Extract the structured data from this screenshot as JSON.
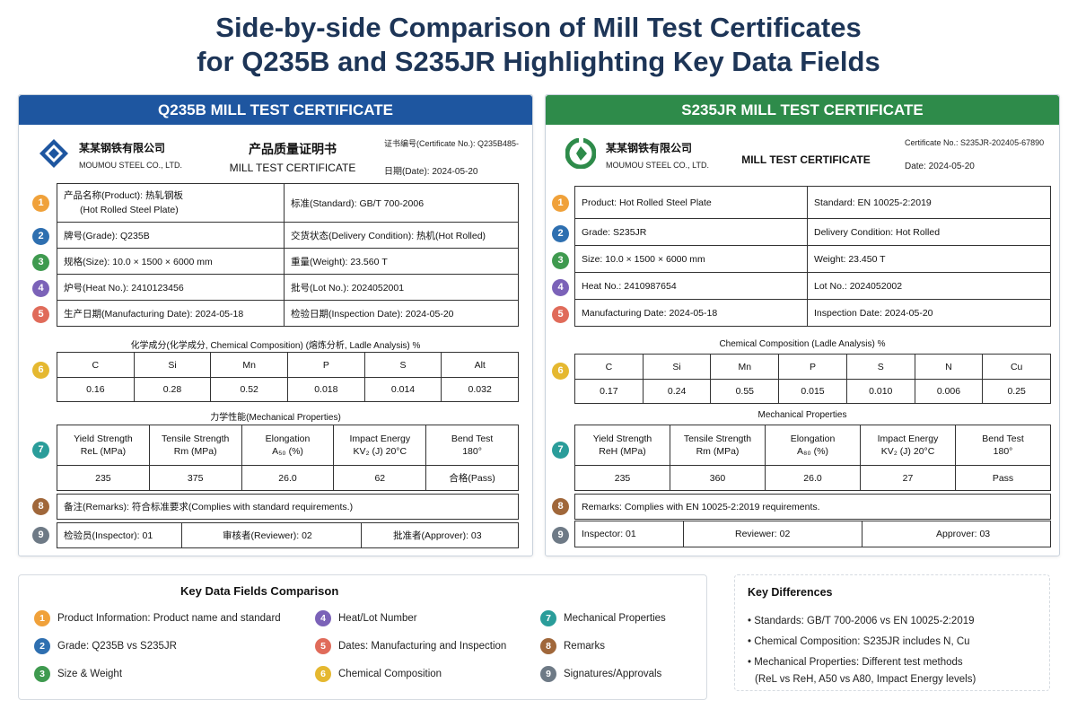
{
  "page": {
    "title_line1": "Side-by-side Comparison of Mill Test Certificates",
    "title_line2": "for Q235B and S235JR Highlighting Key Data Fields"
  },
  "colors": {
    "q235b_header": "#1e56a0",
    "s235jr_header": "#2e8b4a",
    "badges": [
      "#f0a13a",
      "#2e6fb0",
      "#3f9a4f",
      "#7b62b8",
      "#e06b5a",
      "#e5b830",
      "#2a9d9a",
      "#a0673a",
      "#6e7a86"
    ]
  },
  "q235b": {
    "header": "Q235B MILL TEST CERTIFICATE",
    "logo_icon": "diamond-logo-icon",
    "company_cn": "某某钢铁有限公司",
    "company_en": "MOUMOU STEEL CO., LTD.",
    "doc_title_cn": "产品质量证明书",
    "doc_title_en": "MILL TEST CERTIFICATE",
    "cert_no": "证书编号(Certificate No.): Q235B485-",
    "date": "日期(Date): 2024-05-20",
    "product_label": "产品名称(Product): 热轧钢板",
    "product_value": "(Hot Rolled Steel Plate)",
    "standard": "标准(Standard): GB/T 700-2006",
    "grade": "牌号(Grade): Q235B",
    "delivery": "交货状态(Delivery Condition): 热机(Hot Rolled)",
    "size": "规格(Size): 10.0 × 1500 × 6000 mm",
    "weight": "重量(Weight): 23.560 T",
    "heat": "炉号(Heat No.): 2410123456",
    "lot": "批号(Lot No.): 2024052001",
    "mfg_date": "生产日期(Manufacturing Date): 2024-05-18",
    "insp_date": "检验日期(Inspection Date): 2024-05-20",
    "chem_title": "化学成分(化学成分, Chemical Composition) (熔炼分析, Ladle Analysis) %",
    "chem_headers": [
      "C",
      "Si",
      "Mn",
      "P",
      "S",
      "Alt"
    ],
    "chem_values": [
      "0.16",
      "0.28",
      "0.52",
      "0.018",
      "0.014",
      "0.032"
    ],
    "mech_title": "力学性能(Mechanical Properties)",
    "mech_headers": [
      [
        "Yield Strength",
        "ReL (MPa)"
      ],
      [
        "Tensile Strength",
        "Rm (MPa)"
      ],
      [
        "Elongation",
        "A₅₀ (%)"
      ],
      [
        "Impact Energy",
        "KV₂ (J) 20°C"
      ],
      [
        "Bend Test",
        "180°"
      ]
    ],
    "mech_values": [
      "235",
      "375",
      "26.0",
      "62",
      "合格(Pass)"
    ],
    "remarks": "备注(Remarks): 符合标准要求(Complies with standard requirements.)",
    "inspector": "检验员(Inspector): 01",
    "reviewer": "审核者(Reviewer): 02",
    "approver": "批准者(Approver): 03"
  },
  "s235jr": {
    "header": "S235JR MILL TEST CERTIFICATE",
    "logo_icon": "circle-logo-icon",
    "company_cn": "某某钢铁有限公司",
    "company_en": "MOUMOU STEEL CO., LTD.",
    "doc_title_en": "MILL TEST CERTIFICATE",
    "cert_no": "Certificate No.: S235JR-202405-67890",
    "date": "Date: 2024-05-20",
    "product": "Product:  Hot Rolled Steel Plate",
    "standard": "Standard:    EN 10025-2:2019",
    "grade": "Grade:    S235JR",
    "delivery": "Delivery Condition:   Hot Rolled",
    "size": "Size:   10.0 × 1500 × 6000 mm",
    "weight": "Weight:    23.450 T",
    "heat": "Heat No.:   2410987654",
    "lot": "Lot No.:   2024052002",
    "mfg_date": "Manufacturing Date:    2024-05-18",
    "insp_date": "Inspection Date:    2024-05-20",
    "chem_title": "Chemical Composition (Ladle Analysis)  %",
    "chem_headers": [
      "C",
      "Si",
      "Mn",
      "P",
      "S",
      "N",
      "Cu"
    ],
    "chem_values": [
      "0.17",
      "0.24",
      "0.55",
      "0.015",
      "0.010",
      "0.006",
      "0.25"
    ],
    "mech_title": "Mechanical Properties",
    "mech_headers": [
      [
        "Yield Strength",
        "ReH (MPa)"
      ],
      [
        "Tensile Strength",
        "Rm (MPa)"
      ],
      [
        "Elongation",
        "A₈₀ (%)"
      ],
      [
        "Impact Energy",
        "KV₂ (J) 20°C"
      ],
      [
        "Bend Test",
        "180°"
      ]
    ],
    "mech_values": [
      "235",
      "360",
      "26.0",
      "27",
      "Pass"
    ],
    "remarks": "Remarks:  Complies with EN 10025-2:2019 requirements.",
    "inspector": "Inspector: 01",
    "reviewer": "Reviewer: 02",
    "approver": "Approver: 03"
  },
  "badges": [
    "1",
    "2",
    "3",
    "4",
    "5",
    "6",
    "7",
    "8",
    "9"
  ],
  "key_fields": {
    "title": "Key Data Fields Comparison",
    "items": [
      "Product Information: Product name and standard",
      "Grade: Q235B vs S235JR",
      "Size & Weight",
      "Heat/Lot Number",
      "Dates: Manufacturing and Inspection",
      "Chemical Composition",
      "Mechanical Properties",
      "Remarks",
      "Signatures/Approvals"
    ]
  },
  "key_differences": {
    "title": "Key Differences",
    "items": [
      "• Standards: GB/T 700-2006 vs EN 10025-2:2019",
      "• Chemical Composition: S235JR includes N, Cu",
      "• Mechanical Properties: Different test methods",
      "(ReL vs ReH, A50 vs A80, Impact Energy levels)"
    ]
  }
}
